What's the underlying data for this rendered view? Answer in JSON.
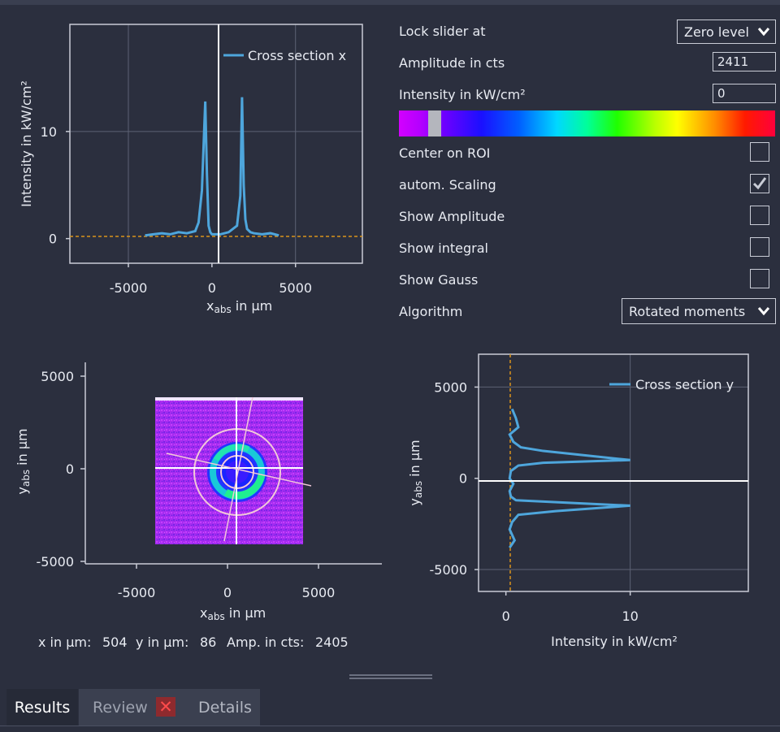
{
  "plot_x": {
    "legend": "Cross section x",
    "ylabel": "Intensity in kW/cm²",
    "xlabel_main": "x",
    "xlabel_sub": "abs",
    "xlabel_unit": " in µm",
    "xticks": [
      "-5000",
      "0",
      "5000"
    ],
    "yticks": [
      "10",
      "0"
    ]
  },
  "plot_image": {
    "ylabel_main": "y",
    "ylabel_sub": "abs",
    "ylabel_unit": " in µm",
    "xlabel_main": "x",
    "xlabel_sub": "abs",
    "xlabel_unit": " in µm",
    "xticks": [
      "-5000",
      "0",
      "5000"
    ],
    "yticks": [
      "5000",
      "0",
      "-5000"
    ]
  },
  "plot_y": {
    "legend": "Cross section y",
    "ylabel_main": "y",
    "ylabel_sub": "abs",
    "ylabel_unit": " in µm",
    "xlabel": "Intensity in kW/cm²",
    "xticks": [
      "0",
      "10"
    ],
    "yticks": [
      "5000",
      "0",
      "-5000"
    ]
  },
  "chart_data": [
    {
      "type": "line",
      "series": [
        {
          "name": "Cross section x",
          "color": "#4ea6dc",
          "x": [
            -4000,
            -3500,
            -3000,
            -2500,
            -2000,
            -1500,
            -1000,
            -800,
            -600,
            -400,
            -300,
            -200,
            -100,
            0,
            500,
            1000,
            1500,
            1700,
            1800,
            1900,
            2000,
            2100,
            2300,
            2500,
            3000,
            3500,
            4000
          ],
          "y": [
            0.3,
            0.4,
            0.5,
            0.4,
            0.6,
            0.5,
            0.7,
            1.5,
            4.5,
            12.8,
            6,
            1.2,
            0.6,
            0.4,
            0.4,
            0.6,
            1.2,
            4,
            13.2,
            5,
            1.8,
            0.9,
            0.6,
            0.5,
            0.4,
            0.5,
            0.3
          ]
        }
      ],
      "xlim": [
        -8500,
        9000
      ],
      "ylim": [
        -2.3,
        20
      ],
      "grid": true,
      "legend": "top-right"
    },
    {
      "type": "line",
      "series": [
        {
          "name": "Cross section y",
          "color": "#4ea6dc",
          "x": [
            0.5,
            0.8,
            1.0,
            0.3,
            0.6,
            1.2,
            3,
            10,
            3,
            1.0,
            0.4,
            0.3,
            0.6,
            0.3,
            0.4,
            0.8,
            10,
            4,
            1.0,
            0.5,
            0.3,
            0.5,
            0.7,
            0.4,
            0.3
          ],
          "y": [
            3800,
            3300,
            2800,
            2400,
            2000,
            1700,
            1500,
            1000,
            850,
            700,
            400,
            0,
            -300,
            -700,
            -1000,
            -1200,
            -1500,
            -1800,
            -2000,
            -2400,
            -2800,
            -3100,
            -3400,
            -3700,
            -3800
          ]
        }
      ],
      "xlim": [
        -2.2,
        19.5
      ],
      "ylim": [
        -6200,
        6800
      ],
      "grid": true,
      "legend": "top-right"
    }
  ],
  "controls": {
    "lock_slider_label": "Lock slider at",
    "lock_slider_value": "Zero level",
    "amplitude_label": "Amplitude in cts",
    "amplitude_value": "2411",
    "intensity_label": "Intensity in kW/cm²",
    "intensity_value": "0",
    "center_roi_label": "Center on ROI",
    "autom_scaling_label": "autom. Scaling",
    "show_amplitude_label": "Show Amplitude",
    "show_integral_label": "Show integral",
    "show_gauss_label": "Show Gauss",
    "algorithm_label": "Algorithm",
    "algorithm_value": "Rotated moments",
    "checkbox_states": {
      "center_roi": false,
      "autom_scaling": true,
      "show_amplitude": false,
      "show_integral": false,
      "show_gauss": false
    }
  },
  "readout": {
    "x_label": "x in µm:",
    "x_value": "504",
    "y_label": "y in µm:",
    "y_value": "86",
    "amp_label": "Amp. in cts:",
    "amp_value": "2405"
  },
  "tabs": {
    "results": "Results",
    "review": "Review",
    "details": "Details",
    "close_glyph": "✕"
  },
  "colors": {
    "background": "#2b2f3e",
    "series": "#4ea6dc",
    "zero_line": "#d9941c"
  }
}
